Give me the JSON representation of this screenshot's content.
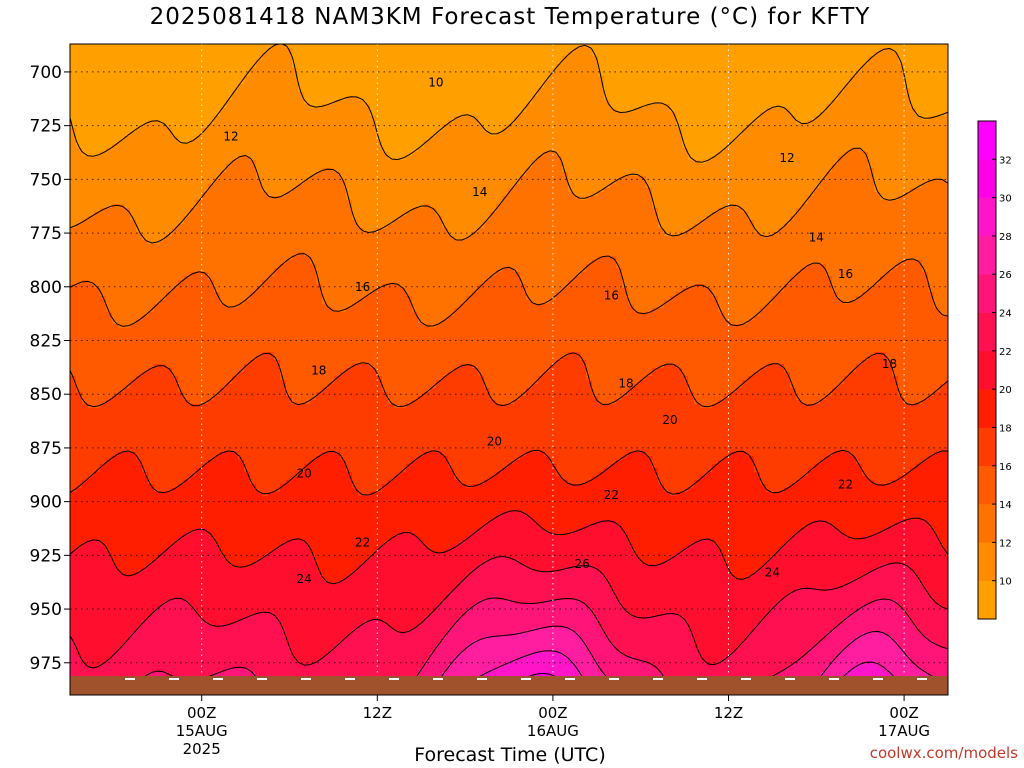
{
  "chart_data": {
    "type": "heatmap",
    "title": "2025081418 NAM3KM Forecast Temperature (°C) for KFTY",
    "xlabel": "Forecast Time (UTC)",
    "ylabel": "",
    "y_axis": {
      "scale": "pressure (inverted)",
      "ticks": [
        700,
        725,
        750,
        775,
        800,
        825,
        850,
        875,
        900,
        925,
        950,
        975
      ],
      "ylim": [
        687,
        990
      ]
    },
    "x_axis": {
      "xlim_hours": [
        -9,
        51
      ],
      "ticks": [
        {
          "hour": 0,
          "lines": [
            "00Z",
            "15AUG",
            "2025"
          ]
        },
        {
          "hour": 12,
          "lines": [
            "12Z"
          ]
        },
        {
          "hour": 24,
          "lines": [
            "00Z",
            "16AUG"
          ]
        },
        {
          "hour": 36,
          "lines": [
            "12Z"
          ]
        },
        {
          "hour": 48,
          "lines": [
            "00Z",
            "17AUG"
          ]
        }
      ]
    },
    "grid": true,
    "colorbar": {
      "levels": [
        10,
        12,
        14,
        16,
        18,
        20,
        22,
        24,
        26,
        28,
        30,
        32
      ],
      "colors": [
        "#ff9f00",
        "#ff8c00",
        "#ff7200",
        "#ff5a00",
        "#ff3c00",
        "#ff1e00",
        "#ff0f2d",
        "#ff1050",
        "#ff1478",
        "#ff1ea0",
        "#ff14c8",
        "#ff00e6",
        "#ff00ff"
      ],
      "placement": "right"
    },
    "contour_labels": [
      {
        "value": "10",
        "hour": 16,
        "p": 705
      },
      {
        "value": "12",
        "hour": 2,
        "p": 730
      },
      {
        "value": "12",
        "hour": 40,
        "p": 740
      },
      {
        "value": "14",
        "hour": 19,
        "p": 756
      },
      {
        "value": "14",
        "hour": 42,
        "p": 777
      },
      {
        "value": "16",
        "hour": 11,
        "p": 800
      },
      {
        "value": "16",
        "hour": 28,
        "p": 804
      },
      {
        "value": "16",
        "hour": 44,
        "p": 794
      },
      {
        "value": "18",
        "hour": 8,
        "p": 839
      },
      {
        "value": "18",
        "hour": 29,
        "p": 845
      },
      {
        "value": "18",
        "hour": 47,
        "p": 836
      },
      {
        "value": "20",
        "hour": 20,
        "p": 872
      },
      {
        "value": "20",
        "hour": 7,
        "p": 887
      },
      {
        "value": "20",
        "hour": 32,
        "p": 862
      },
      {
        "value": "22",
        "hour": 28,
        "p": 897
      },
      {
        "value": "22",
        "hour": 11,
        "p": 919
      },
      {
        "value": "22",
        "hour": 44,
        "p": 892
      },
      {
        "value": "24",
        "hour": 7,
        "p": 936
      },
      {
        "value": "24",
        "hour": 39,
        "p": 933
      },
      {
        "value": "26",
        "hour": 26,
        "p": 929
      }
    ]
  },
  "credit": "coolwx.com/models"
}
